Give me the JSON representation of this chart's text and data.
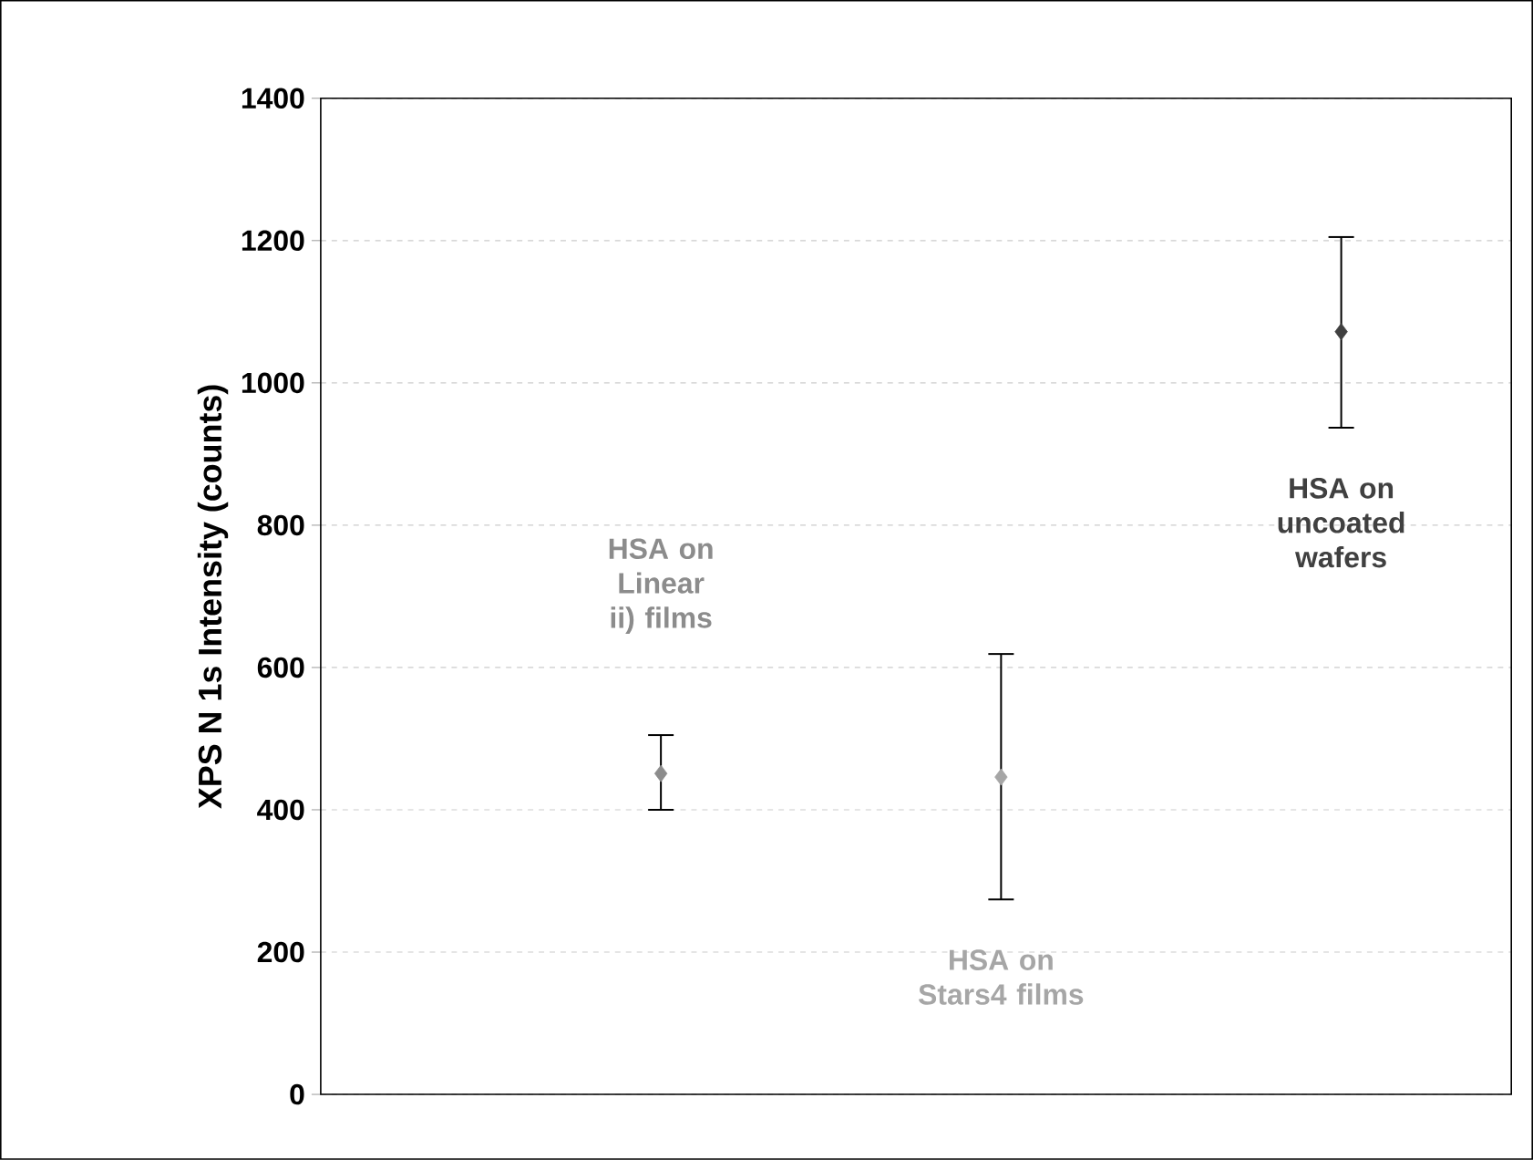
{
  "chart_data": {
    "type": "scatter",
    "ylabel": "XPS N 1s Intensity (counts)",
    "categories": [
      null,
      null,
      null
    ],
    "series": [
      {
        "name": "HSA on Linear ii) films",
        "color": "#8c8c8c",
        "values": [
          451,
          null,
          null
        ],
        "errors": [
          [
            400,
            505
          ],
          null,
          null
        ]
      },
      {
        "name": "HSA on Stars4 films",
        "color": "#a6a6a6",
        "values": [
          null,
          446,
          null
        ],
        "errors": [
          null,
          [
            274,
            619
          ],
          null
        ]
      },
      {
        "name": "HSA on uncoated wafers",
        "color": "#404040",
        "values": [
          null,
          null,
          1072
        ],
        "errors": [
          null,
          null,
          [
            937,
            1205
          ]
        ]
      }
    ],
    "ylim": [
      0,
      1400
    ],
    "yticks": [
      0,
      200,
      400,
      600,
      800,
      1000,
      1200,
      1400
    ],
    "grid": "y",
    "marker": "diamond"
  }
}
